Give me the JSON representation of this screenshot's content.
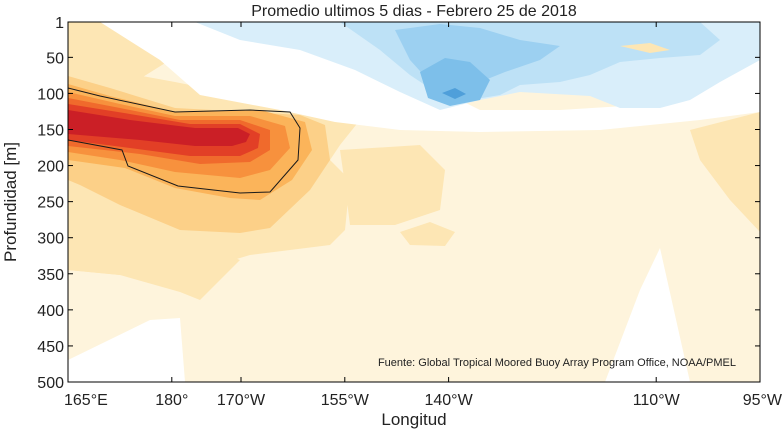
{
  "chart_data": {
    "type": "heatmap",
    "title": "Promedio ultimos 5 dias - Febrero 25 de 2018",
    "xlabel": "Longitud",
    "ylabel": "Profundidad [m]",
    "x_ticks": [
      {
        "value": 165,
        "label": "165°E"
      },
      {
        "value": 180,
        "label": "180°"
      },
      {
        "value": 190,
        "label": "170°W"
      },
      {
        "value": 205,
        "label": "155°W"
      },
      {
        "value": 220,
        "label": "140°W"
      },
      {
        "value": 250,
        "label": "110°W"
      },
      {
        "value": 265,
        "label": "95°W"
      }
    ],
    "y_ticks": [
      {
        "value": 1,
        "label": "1"
      },
      {
        "value": 50,
        "label": "50"
      },
      {
        "value": 100,
        "label": "100"
      },
      {
        "value": 150,
        "label": "150"
      },
      {
        "value": 200,
        "label": "200"
      },
      {
        "value": 250,
        "label": "250"
      },
      {
        "value": 300,
        "label": "300"
      },
      {
        "value": 350,
        "label": "350"
      },
      {
        "value": 400,
        "label": "400"
      },
      {
        "value": 450,
        "label": "450"
      },
      {
        "value": 500,
        "label": "500"
      }
    ],
    "xlim": [
      165,
      265
    ],
    "ylim": [
      1,
      500
    ],
    "y_inverted": true,
    "legend": "none",
    "colors": {
      "warm_levels": [
        "#fef4dc",
        "#fde6b4",
        "#fcd088",
        "#fbb45a",
        "#f7913d",
        "#f06a2c",
        "#e23f26",
        "#cb1f26"
      ],
      "cool_levels": [
        "#d9eefa",
        "#bde1f6",
        "#9cd0f1",
        "#7dbfea",
        "#4f9fda"
      ],
      "contour_line": "#1a1a1a"
    },
    "annotation": "Fuente: Global Tropical Moored Buoy Array Program Office, NOAA/PMEL"
  }
}
